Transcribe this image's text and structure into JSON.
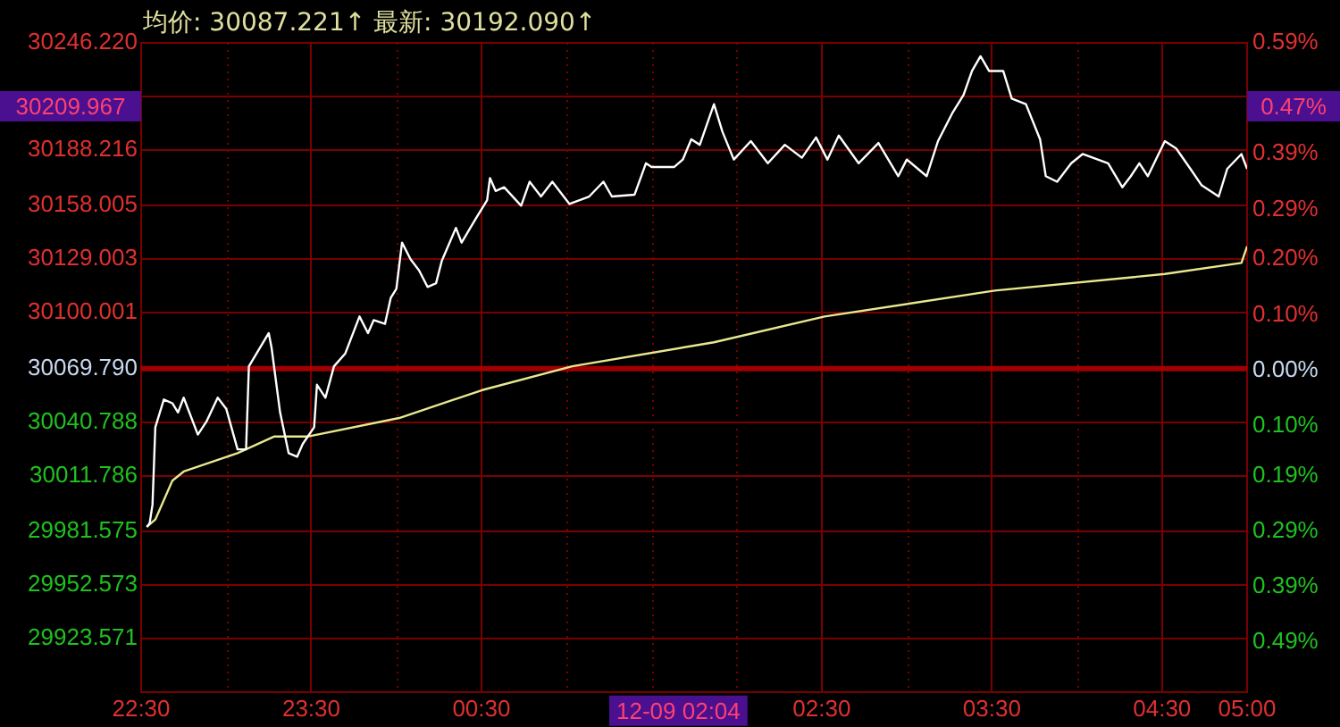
{
  "chart_data": {
    "type": "line",
    "title": "均价: 30087.221↑ 最新: 30192.090↑",
    "series": [
      {
        "color": "#ffffff",
        "x": [
          "--12-08T22:32",
          "--12-08T22:33",
          "--12-08T22:34",
          "--12-08T22:35",
          "--12-08T22:38",
          "--12-08T22:41",
          "--12-08T22:43",
          "--12-08T22:45",
          "--12-08T22:50",
          "--12-08T22:53",
          "--12-08T22:57",
          "--12-08T23:00",
          "--12-08T23:04",
          "--12-08T23:07",
          "--12-08T23:08",
          "--12-08T23:15",
          "--12-08T23:16",
          "--12-08T23:19",
          "--12-08T23:22",
          "--12-08T23:25",
          "--12-08T23:27",
          "--12-08T23:31",
          "--12-08T23:32",
          "--12-08T23:35",
          "--12-08T23:38",
          "--12-08T23:42",
          "--12-08T23:47",
          "--12-08T23:50",
          "--12-08T23:52",
          "--12-08T23:56",
          "--12-08T23:58",
          "--12-09T00:00",
          "--12-09T00:02",
          "--12-09T00:05",
          "--12-09T00:08",
          "--12-09T00:11",
          "--12-09T00:14",
          "--12-09T00:16",
          "--12-09T00:21",
          "--12-09T00:23",
          "--12-09T00:28",
          "--12-09T00:32",
          "--12-09T00:33",
          "--12-09T00:35",
          "--12-09T00:38",
          "--12-09T00:44",
          "--12-09T00:47",
          "--12-09T00:51",
          "--12-09T00:55",
          "--12-09T01:01",
          "--12-09T01:08",
          "--12-09T01:13",
          "--12-09T01:16",
          "--12-09T01:24",
          "--12-09T01:28",
          "--12-09T01:30",
          "--12-09T01:38",
          "--12-09T01:41",
          "--12-09T01:44",
          "--12-09T01:47",
          "--12-09T01:52",
          "--12-09T01:55",
          "--12-09T01:59",
          "--12-09T02:05",
          "--12-09T02:11",
          "--12-09T02:17",
          "--12-09T02:23",
          "--12-09T02:28",
          "--12-09T02:32",
          "--12-09T02:36",
          "--12-09T02:43",
          "--12-09T02:50",
          "--12-09T02:57",
          "--12-09T03:00",
          "--12-09T03:07",
          "--12-09T03:11",
          "--12-09T03:16",
          "--12-09T03:20",
          "--12-09T03:23",
          "--12-09T03:26",
          "--12-09T03:29",
          "--12-09T03:34",
          "--12-09T03:37",
          "--12-09T03:42",
          "--12-09T03:47",
          "--12-09T03:49",
          "--12-09T03:53",
          "--12-09T03:58",
          "--12-09T04:02",
          "--12-09T04:11",
          "--12-09T04:16",
          "--12-09T04:19",
          "--12-09T04:22",
          "--12-09T04:25",
          "--12-09T04:31",
          "--12-09T04:35",
          "--12-09T04:40",
          "--12-09T04:44",
          "--12-09T04:50",
          "--12-09T04:53",
          "--12-09T04:58",
          "--12-09T05:00"
        ],
        "values": [
          29984,
          29986,
          29996,
          30038,
          30053,
          30051,
          30046,
          30054,
          30034,
          30041,
          30054,
          30048,
          30026,
          30026,
          30071,
          30089,
          30081,
          30046,
          30024,
          30022,
          30029,
          30038,
          30061,
          30054,
          30071,
          30078,
          30098,
          30089,
          30096,
          30094,
          30108,
          30113,
          30138,
          30129,
          30123,
          30114,
          30116,
          30128,
          30146,
          30138,
          30151,
          30161,
          30173,
          30166,
          30168,
          30158,
          30171,
          30163,
          30171,
          30159,
          30163,
          30171,
          30163,
          30164,
          30181,
          30179,
          30179,
          30183,
          30194,
          30191,
          30213,
          30198,
          30183,
          30193,
          30181,
          30191,
          30184,
          30195,
          30183,
          30196,
          30181,
          30192,
          30174,
          30183,
          30174,
          30193,
          30208,
          30218,
          30231,
          30239,
          30231,
          30231,
          30216,
          30213,
          30194,
          30174,
          30171,
          30181,
          30186,
          30181,
          30168,
          30174,
          30181,
          30174,
          30193,
          30189,
          30178,
          30169,
          30163,
          30178,
          30186,
          30178
        ]
      },
      {
        "color": "#e8e890",
        "x": [
          "--12-08T22:32",
          "--12-08T22:35",
          "--12-08T22:41",
          "--12-08T22:45",
          "--12-08T23:04",
          "--12-08T23:17",
          "--12-08T23:29",
          "--12-09T00:01",
          "--12-09T00:30",
          "--12-09T01:02",
          "--12-09T01:52",
          "--12-09T02:31",
          "--12-09T03:31",
          "--12-09T04:31",
          "--12-09T04:58",
          "--12-09T05:00"
        ],
        "values": [
          29984,
          29988,
          30009,
          30014,
          30024,
          30033,
          30033,
          30043,
          30058,
          30071,
          30084,
          30098,
          30112,
          30121,
          30127,
          30136
        ]
      }
    ],
    "xlim": [
      "--12-08T22:30",
      "--12-09T05:00"
    ],
    "xticks": [
      {
        "value": "--12-08T22:30",
        "label": "22:30"
      },
      {
        "value": "--12-08T23:00",
        "label": null
      },
      {
        "value": "--12-08T23:30",
        "label": "23:30"
      },
      {
        "value": "--12-09T00:00",
        "label": null
      },
      {
        "value": "--12-09T00:30",
        "label": "00:30"
      },
      {
        "value": "--12-09T01:00",
        "label": null
      },
      {
        "value": "--12-09T01:30",
        "label": null
      },
      {
        "value": "--12-09T02:00",
        "label": null
      },
      {
        "value": "--12-09T02:30",
        "label": "02:30"
      },
      {
        "value": "--12-09T03:00",
        "label": null
      },
      {
        "value": "--12-09T03:30",
        "label": "03:30"
      },
      {
        "value": "--12-09T04:00",
        "label": null
      },
      {
        "value": "--12-09T04:30",
        "label": "04:30"
      },
      {
        "value": "--12-09T05:00",
        "label": "05:00"
      }
    ],
    "ylim": [
      29894.569,
      30246.22
    ],
    "yticks": [
      {
        "value": 30246.22,
        "label": "30246.220"
      },
      {
        "value": 30217.218,
        "label": null
      },
      {
        "value": 30188.216,
        "label": "30188.216"
      },
      {
        "value": 30158.005,
        "label": "30158.005"
      },
      {
        "value": 30129.003,
        "label": "30129.003"
      },
      {
        "value": 30100.001,
        "label": "30100.001"
      },
      {
        "value": 30069.79,
        "label": "30069.790"
      },
      {
        "value": 30040.788,
        "label": "30040.788"
      },
      {
        "value": 30011.786,
        "label": "30011.786"
      },
      {
        "value": 29981.575,
        "label": "29981.575"
      },
      {
        "value": 29952.573,
        "label": "29952.573"
      },
      {
        "value": 29923.571,
        "label": "29923.571"
      }
    ],
    "y2lim": [
      -0.58,
      0.59
    ],
    "y2ticks": [
      {
        "value": 0.59,
        "label": "0.59%"
      },
      {
        "value": 0.49,
        "label": null
      },
      {
        "value": 0.39,
        "label": "0.39%"
      },
      {
        "value": 0.29,
        "label": "0.29%"
      },
      {
        "value": 0.2,
        "label": "0.20%"
      },
      {
        "value": 0.1,
        "label": "0.10%"
      },
      {
        "value": 0,
        "label": "0.00%"
      },
      {
        "value": -0.1,
        "label": "0.10%"
      },
      {
        "value": -0.19,
        "label": "0.19%"
      },
      {
        "value": -0.29,
        "label": "0.29%"
      },
      {
        "value": -0.39,
        "label": "0.39%"
      },
      {
        "value": -0.49,
        "label": "0.49%"
      }
    ],
    "ref_lines": [
      {
        "axis": "y",
        "value": 30069.79,
        "color": "#a00000"
      }
    ],
    "annotations": [
      "30209.967",
      "0.47%",
      "12-09 02:04"
    ],
    "grid": true,
    "legend": false,
    "marker": "none"
  }
}
